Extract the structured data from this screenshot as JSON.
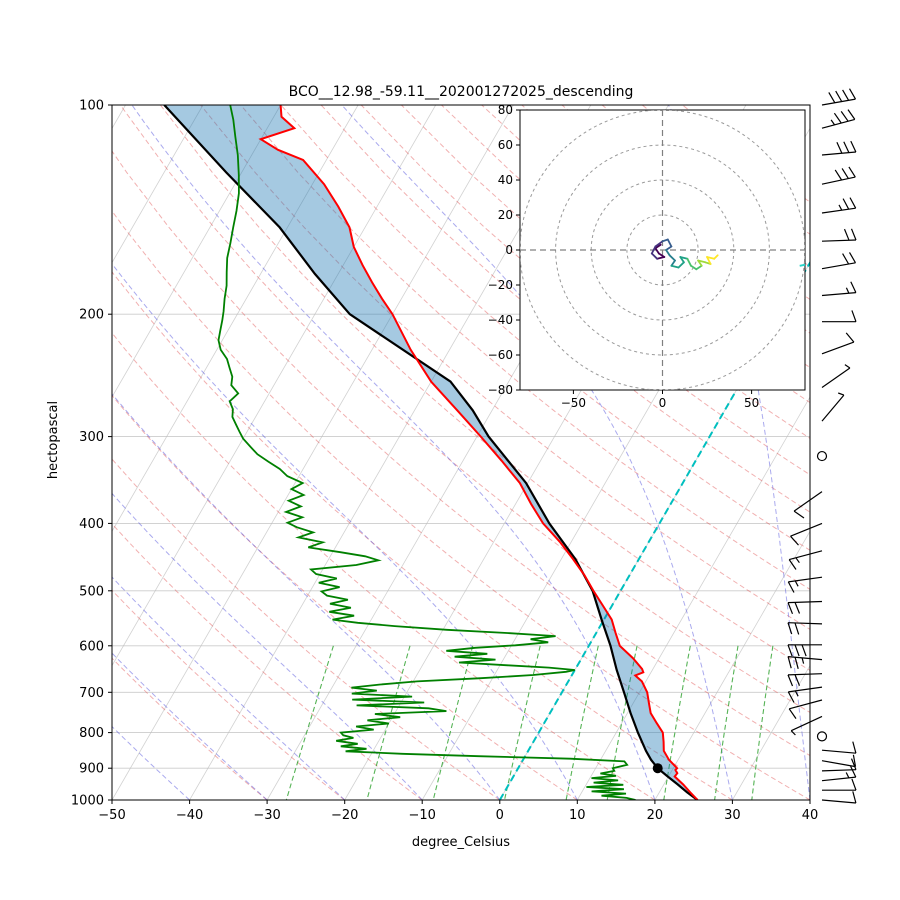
{
  "title": "BCO__12.98_-59.11__202001272025_descending",
  "main_axes": {
    "xlabel": "degree_Celsius",
    "ylabel": "hectopascal",
    "x_ticks": [
      -50,
      -40,
      -30,
      -20,
      -10,
      0,
      10,
      20,
      30,
      40
    ],
    "y_ticks": [
      100,
      200,
      300,
      400,
      500,
      600,
      700,
      800,
      900,
      1000
    ],
    "xlim": [
      -50,
      40
    ],
    "pressure_lim": [
      1000,
      100
    ],
    "rotation_deg": 30
  },
  "chart_data": {
    "type": "line",
    "title": "BCO__12.98_-59.11__202001272025_descending",
    "xlabel": "degree_Celsius",
    "ylabel": "hectopascal",
    "x_range_celsius": [
      -50,
      40
    ],
    "pressure_range_hpa": [
      1000,
      100
    ],
    "series": [
      {
        "name": "temperature",
        "color": "#ff0000",
        "points": [
          [
            1000,
            25.5
          ],
          [
            975,
            24.0
          ],
          [
            950,
            22.5
          ],
          [
            925,
            20.8
          ],
          [
            915,
            20.9
          ],
          [
            905,
            20.4
          ],
          [
            900,
            20.5
          ],
          [
            875,
            18.8
          ],
          [
            850,
            17.5
          ],
          [
            825,
            16.8
          ],
          [
            800,
            16.0
          ],
          [
            775,
            14.5
          ],
          [
            750,
            13.0
          ],
          [
            725,
            12.0
          ],
          [
            700,
            11.0
          ],
          [
            675,
            9.5
          ],
          [
            662,
            8.2
          ],
          [
            655,
            9.0
          ],
          [
            648,
            8.6
          ],
          [
            625,
            6.6
          ],
          [
            600,
            4.0
          ],
          [
            575,
            2.5
          ],
          [
            550,
            1.0
          ],
          [
            525,
            -1.2
          ],
          [
            500,
            -3.5
          ],
          [
            475,
            -5.8
          ],
          [
            450,
            -8.5
          ],
          [
            425,
            -11.5
          ],
          [
            400,
            -15.0
          ],
          [
            375,
            -18.0
          ],
          [
            350,
            -21.0
          ],
          [
            325,
            -25.0
          ],
          [
            300,
            -29.5
          ],
          [
            275,
            -34.5
          ],
          [
            250,
            -40.0
          ],
          [
            225,
            -45.0
          ],
          [
            200,
            -50.0
          ],
          [
            190,
            -52.5
          ],
          [
            180,
            -55.0
          ],
          [
            170,
            -57.5
          ],
          [
            160,
            -60.0
          ],
          [
            150,
            -62.0
          ],
          [
            140,
            -65.0
          ],
          [
            130,
            -68.5
          ],
          [
            120,
            -73.0
          ],
          [
            116,
            -77.0
          ],
          [
            112,
            -80.0
          ],
          [
            108,
            -76.5
          ],
          [
            104,
            -79.0
          ],
          [
            100,
            -80.0
          ]
        ]
      },
      {
        "name": "dewpoint",
        "color": "#008000",
        "points": [
          [
            1000,
            17.5
          ],
          [
            993,
            16.2
          ],
          [
            986,
            12.8
          ],
          [
            979,
            15.8
          ],
          [
            972,
            11.2
          ],
          [
            965,
            15.2
          ],
          [
            958,
            10.2
          ],
          [
            951,
            14.8
          ],
          [
            944,
            10.8
          ],
          [
            937,
            13.8
          ],
          [
            930,
            10.2
          ],
          [
            923,
            13.2
          ],
          [
            916,
            11.0
          ],
          [
            908,
            12.6
          ],
          [
            900,
            12.2
          ],
          [
            890,
            13.8
          ],
          [
            880,
            13.2
          ],
          [
            872,
            6.0
          ],
          [
            865,
            -6.0
          ],
          [
            858,
            -16.0
          ],
          [
            851,
            -23.5
          ],
          [
            844,
            -21.0
          ],
          [
            837,
            -24.5
          ],
          [
            830,
            -22.5
          ],
          [
            822,
            -25.5
          ],
          [
            814,
            -23.5
          ],
          [
            807,
            -25.0
          ],
          [
            800,
            -25.5
          ],
          [
            792,
            -21.5
          ],
          [
            784,
            -24.0
          ],
          [
            776,
            -20.0
          ],
          [
            768,
            -23.0
          ],
          [
            760,
            -19.0
          ],
          [
            752,
            -22.5
          ],
          [
            745,
            -13.5
          ],
          [
            738,
            -16.0
          ],
          [
            731,
            -25.5
          ],
          [
            724,
            -17.0
          ],
          [
            717,
            -26.5
          ],
          [
            710,
            -19.0
          ],
          [
            703,
            -27.0
          ],
          [
            696,
            -24.0
          ],
          [
            689,
            -27.5
          ],
          [
            682,
            -24.0
          ],
          [
            675,
            -19.5
          ],
          [
            668,
            -11.5
          ],
          [
            661,
            -5.0
          ],
          [
            654,
            -1.0
          ],
          [
            650,
            0.0
          ],
          [
            645,
            -3.5
          ],
          [
            640,
            -9.0
          ],
          [
            634,
            -15.5
          ],
          [
            628,
            -11.0
          ],
          [
            622,
            -16.5
          ],
          [
            616,
            -12.5
          ],
          [
            610,
            -18.0
          ],
          [
            604,
            -14.5
          ],
          [
            599,
            -9.5
          ],
          [
            593,
            -5.5
          ],
          [
            587,
            -8.0
          ],
          [
            581,
            -5.0
          ],
          [
            575,
            -11.5
          ],
          [
            569,
            -19.5
          ],
          [
            562,
            -26.5
          ],
          [
            556,
            -31.5
          ],
          [
            550,
            -35.0
          ],
          [
            543,
            -32.5
          ],
          [
            536,
            -36.0
          ],
          [
            529,
            -33.5
          ],
          [
            522,
            -36.5
          ],
          [
            515,
            -34.5
          ],
          [
            508,
            -37.5
          ],
          [
            501,
            -38.5
          ],
          [
            494,
            -36.5
          ],
          [
            487,
            -39.5
          ],
          [
            480,
            -37.5
          ],
          [
            473,
            -40.5
          ],
          [
            466,
            -41.5
          ],
          [
            459,
            -36.0
          ],
          [
            452,
            -33.5
          ],
          [
            446,
            -35.5
          ],
          [
            440,
            -39.0
          ],
          [
            433,
            -43.5
          ],
          [
            426,
            -42.0
          ],
          [
            419,
            -45.5
          ],
          [
            412,
            -44.0
          ],
          [
            405,
            -46.5
          ],
          [
            399,
            -48.0
          ],
          [
            392,
            -46.5
          ],
          [
            385,
            -49.0
          ],
          [
            378,
            -47.5
          ],
          [
            371,
            -49.5
          ],
          [
            364,
            -48.0
          ],
          [
            357,
            -50.0
          ],
          [
            350,
            -49.0
          ],
          [
            342,
            -51.5
          ],
          [
            334,
            -53.0
          ],
          [
            326,
            -55.0
          ],
          [
            318,
            -57.0
          ],
          [
            310,
            -58.5
          ],
          [
            302,
            -60.0
          ],
          [
            295,
            -61.0
          ],
          [
            288,
            -62.0
          ],
          [
            281,
            -63.0
          ],
          [
            274,
            -63.5
          ],
          [
            267,
            -64.5
          ],
          [
            260,
            -64.0
          ],
          [
            253,
            -65.5
          ],
          [
            246,
            -66.0
          ],
          [
            239,
            -67.0
          ],
          [
            232,
            -68.0
          ],
          [
            225,
            -69.5
          ],
          [
            218,
            -70.5
          ],
          [
            211,
            -71.0
          ],
          [
            204,
            -71.5
          ],
          [
            198,
            -72.0
          ],
          [
            190,
            -72.8
          ],
          [
            182,
            -73.5
          ],
          [
            174,
            -74.5
          ],
          [
            166,
            -75.5
          ],
          [
            158,
            -76.2
          ],
          [
            150,
            -77.0
          ],
          [
            142,
            -77.8
          ],
          [
            134,
            -78.8
          ],
          [
            126,
            -80.2
          ],
          [
            118,
            -81.8
          ],
          [
            111,
            -83.5
          ],
          [
            105,
            -85.0
          ],
          [
            100,
            -86.5
          ]
        ]
      },
      {
        "name": "parcel_profile",
        "color": "#000000",
        "points": [
          [
            1000,
            25.5
          ],
          [
            975,
            23.6
          ],
          [
            950,
            21.8
          ],
          [
            925,
            19.9
          ],
          [
            900,
            18.0
          ],
          [
            875,
            16.5
          ],
          [
            850,
            15.2
          ],
          [
            800,
            12.8
          ],
          [
            750,
            10.4
          ],
          [
            700,
            8.0
          ],
          [
            650,
            5.4
          ],
          [
            600,
            2.8
          ],
          [
            550,
            -0.3
          ],
          [
            500,
            -3.6
          ],
          [
            450,
            -8.2
          ],
          [
            400,
            -14.2
          ],
          [
            350,
            -20.2
          ],
          [
            300,
            -28.5
          ],
          [
            275,
            -32.5
          ],
          [
            250,
            -37.5
          ],
          [
            200,
            -55.5
          ],
          [
            175,
            -63.0
          ],
          [
            150,
            -71.0
          ],
          [
            125,
            -82.0
          ],
          [
            100,
            -95.0
          ]
        ]
      }
    ],
    "lcl_marker": {
      "pressure": 900,
      "temperature": 18,
      "color": "#000000"
    },
    "shade_between_color": "#1f77b4",
    "shade_opacity": 0.4,
    "zero_isotherm": {
      "temperature": 0,
      "color": "#00bfbf",
      "style": "dashed"
    },
    "isotherm_grid": {
      "start": -110,
      "end": 40,
      "step": 10,
      "color": "#bdbdbd"
    },
    "dry_adiabats": {
      "theta_start": -30,
      "theta_end": 200,
      "step": 10,
      "color": "#e05050",
      "style": "dashed"
    },
    "moist_adiabats": {
      "t0_start": -60,
      "t0_end": 40,
      "step": 10,
      "color": "#5555dd",
      "style": "dashed"
    },
    "mixing_ratio_lines": {
      "values_g_per_kg": [
        0.4,
        1,
        2,
        4,
        7,
        10,
        16,
        24,
        32
      ],
      "p_range": [
        600,
        1000
      ],
      "color": "#2ca02c",
      "style": "dashed"
    },
    "wind_barbs": {
      "units": "knots",
      "levels": [
        {
          "p": 100,
          "dir": 80,
          "spd": 40
        },
        {
          "p": 108,
          "dir": 75,
          "spd": 35
        },
        {
          "p": 118,
          "dir": 85,
          "spd": 30
        },
        {
          "p": 130,
          "dir": 78,
          "spd": 28
        },
        {
          "p": 143,
          "dir": 82,
          "spd": 25
        },
        {
          "p": 157,
          "dir": 88,
          "spd": 22
        },
        {
          "p": 172,
          "dir": 80,
          "spd": 18
        },
        {
          "p": 188,
          "dir": 85,
          "spd": 15
        },
        {
          "p": 205,
          "dir": 90,
          "spd": 12
        },
        {
          "p": 228,
          "dir": 70,
          "spd": 8
        },
        {
          "p": 255,
          "dir": 55,
          "spd": 6
        },
        {
          "p": 285,
          "dir": 40,
          "spd": 4
        },
        {
          "p": 320,
          "dir": 0,
          "spd": 0
        },
        {
          "p": 360,
          "dir": 235,
          "spd": 8
        },
        {
          "p": 400,
          "dir": 248,
          "spd": 12
        },
        {
          "p": 438,
          "dir": 255,
          "spd": 16
        },
        {
          "p": 478,
          "dir": 262,
          "spd": 14
        },
        {
          "p": 518,
          "dir": 268,
          "spd": 18
        },
        {
          "p": 558,
          "dir": 272,
          "spd": 22
        },
        {
          "p": 598,
          "dir": 270,
          "spd": 28
        },
        {
          "p": 628,
          "dir": 275,
          "spd": 24
        },
        {
          "p": 658,
          "dir": 268,
          "spd": 20
        },
        {
          "p": 688,
          "dir": 262,
          "spd": 16
        },
        {
          "p": 718,
          "dir": 255,
          "spd": 10
        },
        {
          "p": 758,
          "dir": 245,
          "spd": 6
        },
        {
          "p": 810,
          "dir": 0,
          "spd": 0
        },
        {
          "p": 848,
          "dir": 95,
          "spd": 8
        },
        {
          "p": 878,
          "dir": 100,
          "spd": 12
        },
        {
          "p": 908,
          "dir": 88,
          "spd": 10
        },
        {
          "p": 938,
          "dir": 84,
          "spd": 14
        },
        {
          "p": 968,
          "dir": 90,
          "spd": 10
        },
        {
          "p": 1000,
          "dir": 95,
          "spd": 8
        }
      ]
    },
    "hodograph": {
      "x_ticks": [
        -50,
        0,
        50
      ],
      "y_ticks": [
        80,
        60,
        40,
        20,
        0,
        -20,
        -40,
        -60,
        -80
      ],
      "component_range": 80,
      "ring_radii": [
        20,
        40,
        60,
        80
      ],
      "trace_u_v": [
        [
          -1,
          3
        ],
        [
          -4,
          1
        ],
        [
          -2,
          -2
        ],
        [
          1,
          -4
        ],
        [
          -3,
          -5
        ],
        [
          -6,
          -2
        ],
        [
          -4,
          2
        ],
        [
          0,
          5
        ],
        [
          3,
          6
        ],
        [
          5,
          2
        ],
        [
          2,
          0
        ],
        [
          4,
          -3
        ],
        [
          7,
          -6
        ],
        [
          5,
          -9
        ],
        [
          9,
          -10
        ],
        [
          12,
          -7
        ],
        [
          10,
          -4
        ],
        [
          14,
          -5
        ],
        [
          16,
          -9
        ],
        [
          19,
          -11
        ],
        [
          22,
          -9
        ],
        [
          20,
          -6
        ],
        [
          24,
          -7
        ],
        [
          27,
          -8
        ],
        [
          25,
          -4
        ],
        [
          29,
          -5
        ],
        [
          31,
          -3
        ]
      ],
      "edge_trace_u_v": [
        [
          77,
          -9
        ],
        [
          82,
          -8
        ]
      ],
      "edge_trace_color": "#2ad4c8",
      "colormap": [
        "#440154",
        "#46327e",
        "#365c8d",
        "#277f8e",
        "#1fa187",
        "#4ac16d",
        "#a0da39",
        "#fde725"
      ]
    }
  }
}
